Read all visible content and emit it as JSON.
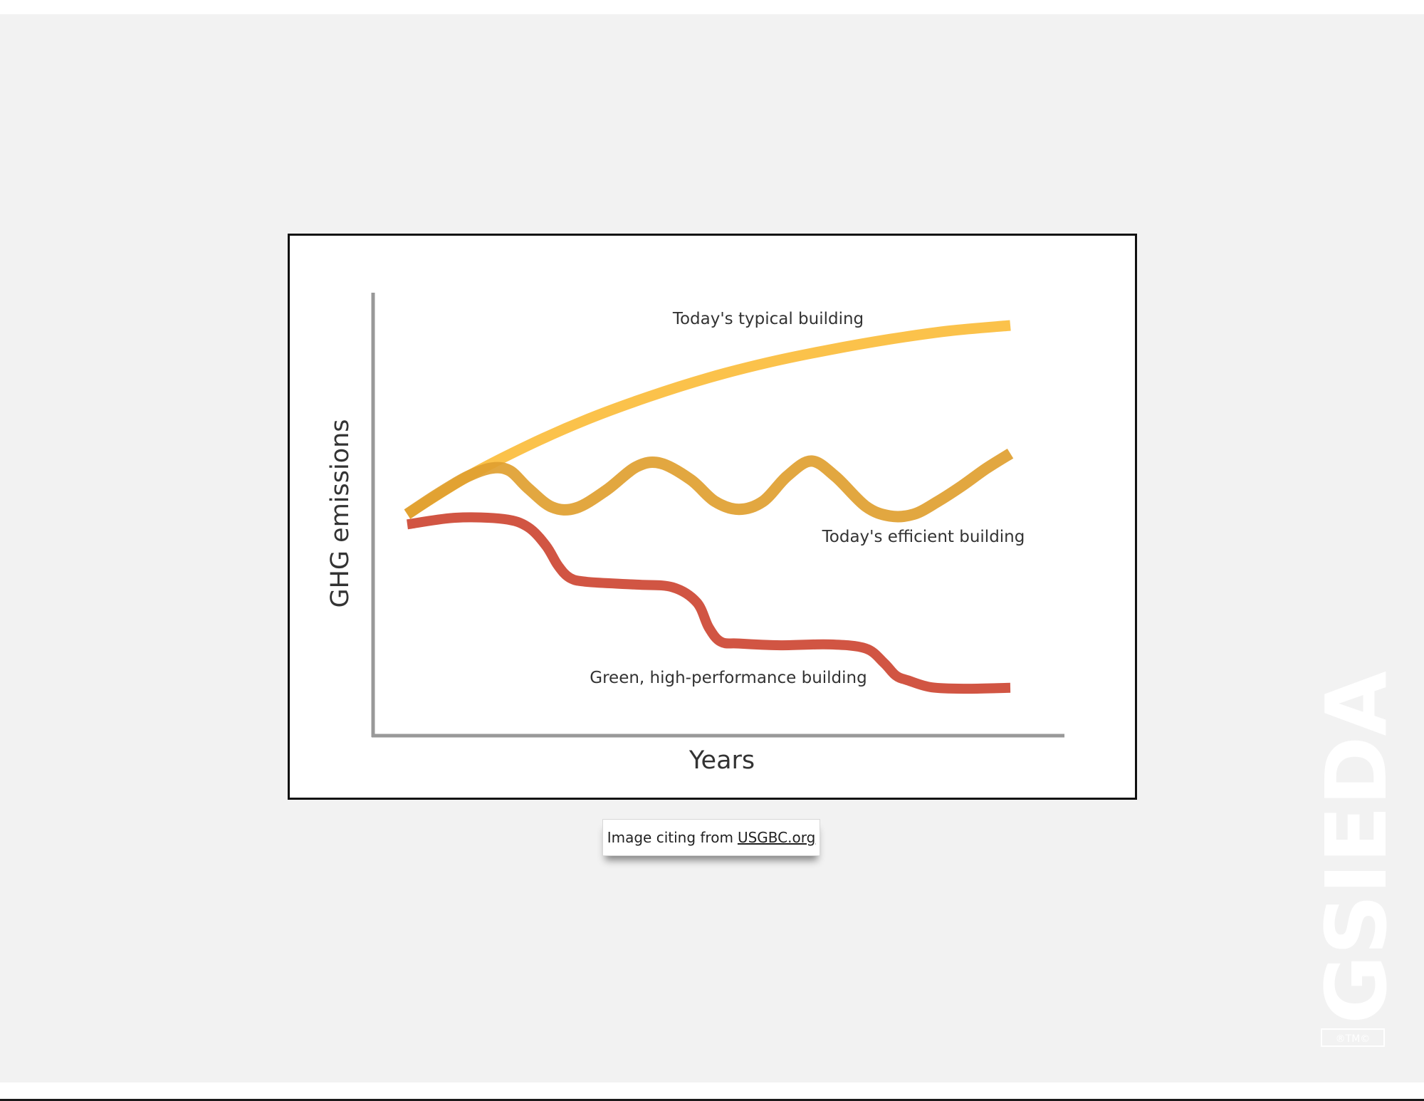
{
  "slide": {
    "background": "#f2f2f2",
    "caption": {
      "prefix": "Image citing from",
      "link": "USGBC.org"
    },
    "watermark": {
      "text": "GSIEDA",
      "marks": "®TM©",
      "color": "#ffffff"
    }
  },
  "chart_data": {
    "type": "line",
    "title": "",
    "xlabel": "Years",
    "ylabel": "GHG emissions",
    "xlim": [
      0,
      100
    ],
    "ylim": [
      0,
      100
    ],
    "grid": false,
    "legend": "none",
    "series": [
      {
        "name": "Today's typical building",
        "color": "#fbbd3c",
        "x": [
          0,
          10,
          20,
          30,
          40,
          50,
          60,
          70,
          80,
          90,
          100
        ],
        "y": [
          50,
          58.5,
          65.5,
          71.5,
          76.5,
          80.8,
          84.3,
          87.1,
          89.5,
          91.4,
          92.6
        ]
      },
      {
        "name": "Today's efficient building",
        "color": "#e0a030",
        "x": [
          0,
          5,
          10,
          14,
          17,
          20,
          24,
          28,
          33,
          38,
          42,
          47,
          51,
          55,
          59,
          63,
          67,
          71,
          76,
          80,
          84,
          88,
          92,
          96,
          100
        ],
        "y": [
          50,
          54.5,
          58.5,
          60.4,
          59.8,
          55.9,
          51.6,
          51.4,
          55.4,
          60.7,
          61.5,
          57.8,
          52.9,
          51.1,
          52.9,
          58.6,
          62.0,
          58.5,
          51.8,
          49.6,
          50.0,
          52.9,
          56.4,
          60.3,
          63.7
        ]
      },
      {
        "name": "Green, high-performance building",
        "color": "#cd4733",
        "x": [
          0,
          8,
          16,
          20,
          23,
          25,
          27,
          30,
          38,
          44,
          48,
          50,
          52,
          55,
          62,
          70,
          76,
          79,
          81,
          83,
          87,
          93,
          100
        ],
        "y": [
          47.7,
          49.2,
          48.9,
          47.1,
          42.9,
          38.4,
          35.6,
          34.7,
          34.1,
          33.5,
          30.1,
          24.4,
          21.2,
          20.8,
          20.4,
          20.6,
          19.7,
          16.5,
          13.6,
          12.5,
          10.9,
          10.6,
          10.8
        ]
      }
    ]
  }
}
